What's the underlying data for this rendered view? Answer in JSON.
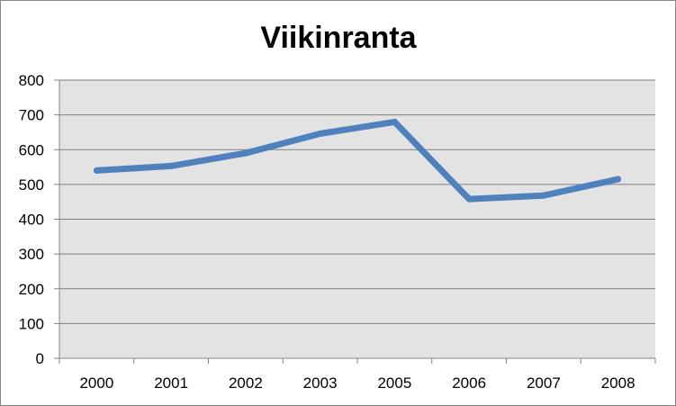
{
  "chart_data": {
    "type": "line",
    "title": "Viikinranta",
    "xlabel": "",
    "ylabel": "",
    "categories": [
      "2000",
      "2001",
      "2002",
      "2003",
      "2005",
      "2006",
      "2007",
      "2008"
    ],
    "series": [
      {
        "values": [
          540,
          553,
          590,
          646,
          680,
          458,
          468,
          515
        ],
        "color": "#4F81BD"
      }
    ],
    "ylim": [
      0,
      800
    ],
    "yticks": [
      "0",
      "100",
      "200",
      "300",
      "400",
      "500",
      "600",
      "700",
      "800"
    ],
    "grid": true,
    "legend": "none",
    "plot_background": "#E3E3E3",
    "gridline_color": "#7F7F7F"
  }
}
